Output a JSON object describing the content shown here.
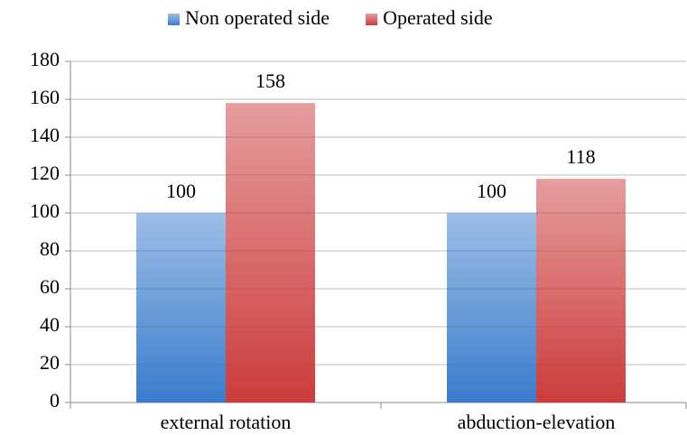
{
  "chart_data": {
    "type": "bar",
    "categories": [
      "external rotation",
      "abduction-elevation"
    ],
    "series": [
      {
        "name": "Non operated side",
        "color": "#3a7ccc",
        "values": [
          100,
          100
        ]
      },
      {
        "name": "Operated side",
        "color": "#cc3c3c",
        "values": [
          158,
          118
        ]
      }
    ],
    "ylim": [
      0,
      180
    ],
    "yticks": [
      0,
      20,
      40,
      60,
      80,
      100,
      120,
      140,
      160,
      180
    ],
    "grid": true,
    "legend": "top"
  }
}
